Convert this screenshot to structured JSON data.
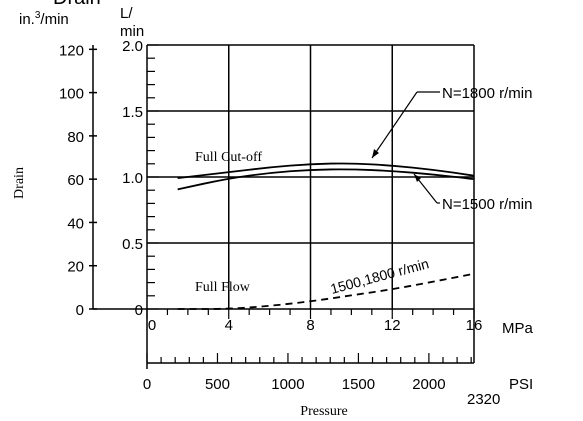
{
  "chart_data": {
    "type": "line",
    "title": "Drain",
    "xlabel": "Pressure",
    "ylabel": "Drain",
    "grid": true,
    "x_axes": {
      "mpa": {
        "unit": "MPa",
        "ticks": [
          "0",
          "4",
          "8",
          "12",
          "16"
        ],
        "range": [
          0,
          16
        ]
      },
      "psi": {
        "unit": "PSI",
        "ticks": [
          "0",
          "500",
          "1000",
          "1500",
          "2000"
        ],
        "extra_tick": "2320",
        "range": [
          0,
          2320
        ]
      }
    },
    "y_axes": {
      "in3": {
        "unit": "in.³/min",
        "ticks": [
          "0",
          "20",
          "40",
          "60",
          "80",
          "100",
          "120"
        ],
        "range": [
          0,
          122
        ]
      },
      "lmin": {
        "unit": "L/\nmin",
        "ticks": [
          "0",
          "0.5",
          "1.0",
          "1.5",
          "2.0"
        ],
        "range": [
          0,
          2.0
        ]
      }
    },
    "region_labels": [
      "Full Cut-off",
      "Full Flow"
    ],
    "series": [
      {
        "name": "N=1800 r/min",
        "x": [
          1.5,
          4,
          6,
          8,
          10,
          12,
          14,
          16
        ],
        "y": [
          60.5,
          63.2,
          65.5,
          67,
          67.4,
          66.3,
          64.4,
          61.6
        ]
      },
      {
        "name": "N=1500 r/min",
        "x": [
          1.5,
          4,
          6,
          8,
          10,
          12,
          14,
          16
        ],
        "y": [
          55.3,
          60.4,
          62.9,
          64.4,
          64.6,
          63.8,
          62.2,
          60
        ]
      },
      {
        "name": "1500,1800 r/min",
        "style": "dashed",
        "x": [
          1.5,
          4,
          6,
          8,
          10,
          12,
          14,
          16
        ],
        "y": [
          0,
          0,
          1.4,
          3.5,
          6.3,
          9.1,
          12.6,
          16.3
        ]
      }
    ]
  }
}
